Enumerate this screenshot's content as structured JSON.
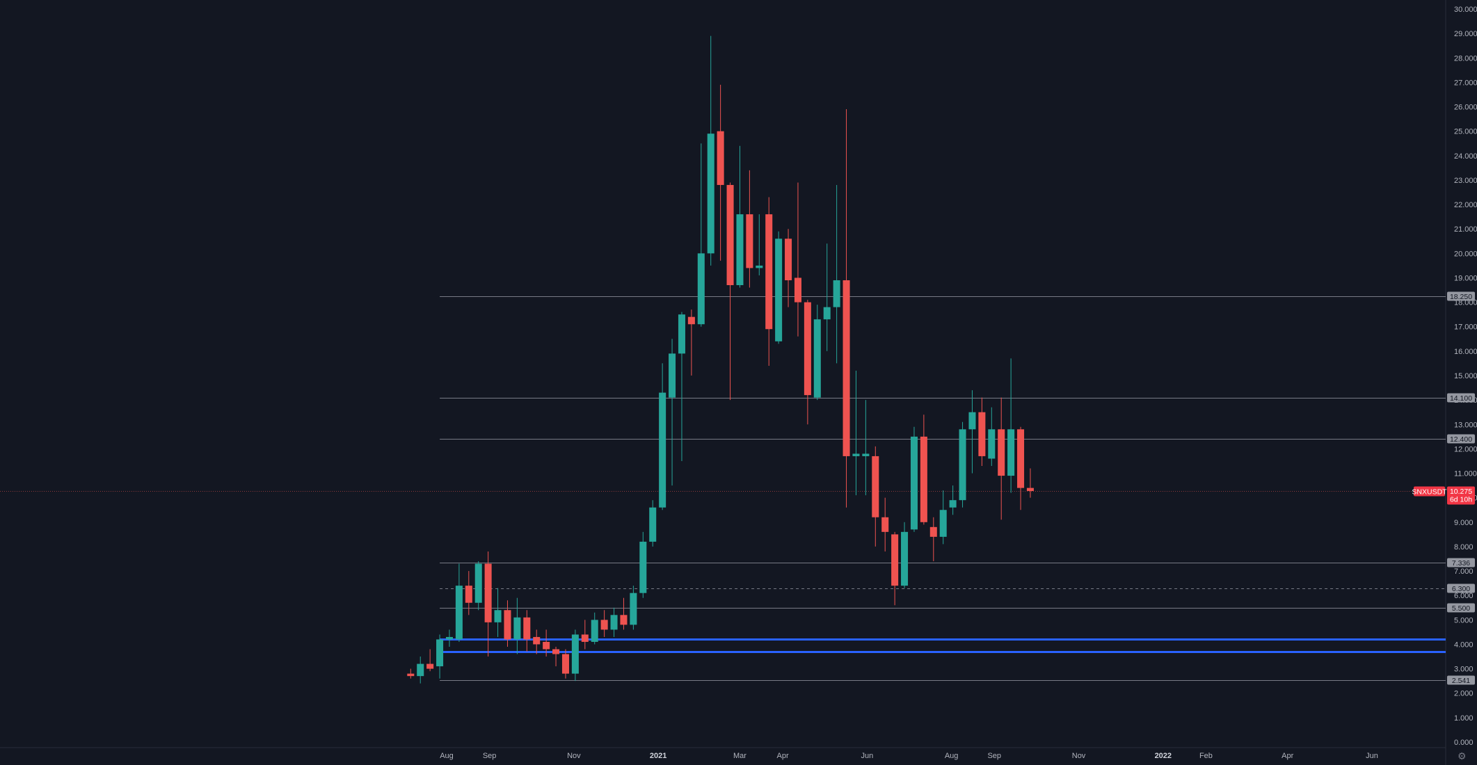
{
  "symbol": "SNXUSDT",
  "colors": {
    "background": "#131722",
    "up": "#26a69a",
    "down": "#ef5350",
    "grid_line": "#5d606b",
    "level_line": "#787b86",
    "blue_line": "#2962ff",
    "axis_text": "#b2b5be",
    "tag_bg": "#9598a1",
    "price_tag_bg": "#f23645"
  },
  "current_price": {
    "value": 10.275,
    "label": "10.275",
    "countdown": "6d 10h",
    "symbol_label": "SNXUSDT"
  },
  "levels": [
    {
      "value": 18.25,
      "label": "18.250",
      "style": "solid"
    },
    {
      "value": 14.1,
      "label": "14.100",
      "style": "solid"
    },
    {
      "value": 12.4,
      "label": "12.400",
      "style": "solid"
    },
    {
      "value": 7.336,
      "label": "7.336",
      "style": "solid"
    },
    {
      "value": 6.3,
      "label": "6.300",
      "style": "dashed"
    },
    {
      "value": 5.5,
      "label": "5.500",
      "style": "solid"
    },
    {
      "value": 2.541,
      "label": "2.541",
      "style": "solid"
    }
  ],
  "blue_levels": [
    4.2,
    3.7
  ],
  "settings_icon": "gear-icon",
  "chart_data": {
    "type": "candlestick",
    "interval": "1W",
    "y_range": [
      0,
      30
    ],
    "y_ticks": [
      "0.000",
      "1.000",
      "2.000",
      "3.000",
      "4.000",
      "5.000",
      "6.000",
      "7.000",
      "8.000",
      "9.000",
      "10.000",
      "11.000",
      "12.000",
      "13.000",
      "14.000",
      "15.000",
      "16.000",
      "17.000",
      "18.000",
      "19.000",
      "20.000",
      "21.000",
      "22.000",
      "23.000",
      "24.000",
      "25.000",
      "26.000",
      "27.000",
      "28.000",
      "29.000",
      "30.000"
    ],
    "x_ticks": [
      {
        "label": "Aug",
        "date": "2020-08-01",
        "year": false
      },
      {
        "label": "Sep",
        "date": "2020-09-01",
        "year": false
      },
      {
        "label": "Nov",
        "date": "2020-11-01",
        "year": false
      },
      {
        "label": "2021",
        "date": "2021-01-01",
        "year": true
      },
      {
        "label": "Mar",
        "date": "2021-03-01",
        "year": false
      },
      {
        "label": "Apr",
        "date": "2021-04-01",
        "year": false
      },
      {
        "label": "Jun",
        "date": "2021-06-01",
        "year": false
      },
      {
        "label": "Aug",
        "date": "2021-08-01",
        "year": false
      },
      {
        "label": "Sep",
        "date": "2021-09-01",
        "year": false
      },
      {
        "label": "Nov",
        "date": "2021-11-01",
        "year": false
      },
      {
        "label": "2022",
        "date": "2022-01-01",
        "year": true
      },
      {
        "label": "Feb",
        "date": "2022-02-01",
        "year": false
      },
      {
        "label": "Apr",
        "date": "2022-04-01",
        "year": false
      },
      {
        "label": "Jun",
        "date": "2022-06-01",
        "year": false
      }
    ],
    "first_candle_date": "2020-07-06",
    "candles": [
      {
        "o": 2.8,
        "h": 3.0,
        "l": 2.6,
        "c": 2.7
      },
      {
        "o": 2.7,
        "h": 3.5,
        "l": 2.4,
        "c": 3.2
      },
      {
        "o": 3.2,
        "h": 3.8,
        "l": 2.9,
        "c": 3.0
      },
      {
        "o": 3.1,
        "h": 4.4,
        "l": 2.6,
        "c": 4.2
      },
      {
        "o": 4.2,
        "h": 4.6,
        "l": 3.9,
        "c": 4.3
      },
      {
        "o": 4.2,
        "h": 7.3,
        "l": 4.1,
        "c": 6.4
      },
      {
        "o": 6.4,
        "h": 7.0,
        "l": 5.2,
        "c": 5.7
      },
      {
        "o": 5.7,
        "h": 7.4,
        "l": 5.4,
        "c": 7.3
      },
      {
        "o": 7.3,
        "h": 7.8,
        "l": 3.5,
        "c": 4.9
      },
      {
        "o": 4.9,
        "h": 6.3,
        "l": 4.3,
        "c": 5.4
      },
      {
        "o": 5.4,
        "h": 5.8,
        "l": 3.9,
        "c": 4.2
      },
      {
        "o": 4.2,
        "h": 5.9,
        "l": 3.6,
        "c": 5.1
      },
      {
        "o": 5.1,
        "h": 5.4,
        "l": 3.7,
        "c": 4.2
      },
      {
        "o": 4.3,
        "h": 4.6,
        "l": 3.6,
        "c": 4.0
      },
      {
        "o": 4.1,
        "h": 4.6,
        "l": 3.5,
        "c": 3.8
      },
      {
        "o": 3.8,
        "h": 3.9,
        "l": 3.1,
        "c": 3.6
      },
      {
        "o": 3.6,
        "h": 3.8,
        "l": 2.6,
        "c": 2.8
      },
      {
        "o": 2.8,
        "h": 4.6,
        "l": 2.5,
        "c": 4.4
      },
      {
        "o": 4.4,
        "h": 5.0,
        "l": 3.8,
        "c": 4.1
      },
      {
        "o": 4.1,
        "h": 5.3,
        "l": 4.0,
        "c": 5.0
      },
      {
        "o": 5.0,
        "h": 5.4,
        "l": 4.3,
        "c": 4.6
      },
      {
        "o": 4.6,
        "h": 5.5,
        "l": 4.3,
        "c": 5.2
      },
      {
        "o": 5.2,
        "h": 5.9,
        "l": 4.6,
        "c": 4.8
      },
      {
        "o": 4.8,
        "h": 6.4,
        "l": 4.6,
        "c": 6.1
      },
      {
        "o": 6.1,
        "h": 8.6,
        "l": 5.9,
        "c": 8.2
      },
      {
        "o": 8.2,
        "h": 9.9,
        "l": 8.0,
        "c": 9.6
      },
      {
        "o": 9.6,
        "h": 15.5,
        "l": 9.5,
        "c": 14.3
      },
      {
        "o": 14.1,
        "h": 16.5,
        "l": 10.5,
        "c": 15.9
      },
      {
        "o": 15.9,
        "h": 17.6,
        "l": 11.5,
        "c": 17.5
      },
      {
        "o": 17.4,
        "h": 17.7,
        "l": 15.0,
        "c": 17.1
      },
      {
        "o": 17.1,
        "h": 24.5,
        "l": 17.0,
        "c": 20.0
      },
      {
        "o": 20.0,
        "h": 28.9,
        "l": 19.5,
        "c": 24.9
      },
      {
        "o": 25.0,
        "h": 26.9,
        "l": 19.7,
        "c": 22.8
      },
      {
        "o": 22.8,
        "h": 22.9,
        "l": 14.0,
        "c": 18.7
      },
      {
        "o": 18.7,
        "h": 24.4,
        "l": 18.6,
        "c": 21.6
      },
      {
        "o": 21.6,
        "h": 23.4,
        "l": 18.6,
        "c": 19.4
      },
      {
        "o": 19.4,
        "h": 21.6,
        "l": 19.1,
        "c": 19.5
      },
      {
        "o": 21.6,
        "h": 22.3,
        "l": 15.4,
        "c": 16.9
      },
      {
        "o": 16.4,
        "h": 20.9,
        "l": 16.3,
        "c": 20.6
      },
      {
        "o": 20.6,
        "h": 21.0,
        "l": 17.8,
        "c": 18.9
      },
      {
        "o": 19.0,
        "h": 22.9,
        "l": 16.6,
        "c": 18.0
      },
      {
        "o": 18.0,
        "h": 18.1,
        "l": 13.0,
        "c": 14.2
      },
      {
        "o": 14.1,
        "h": 17.9,
        "l": 14.0,
        "c": 17.3
      },
      {
        "o": 17.3,
        "h": 20.4,
        "l": 16.0,
        "c": 17.8
      },
      {
        "o": 17.8,
        "h": 22.8,
        "l": 15.5,
        "c": 18.9
      },
      {
        "o": 18.9,
        "h": 25.9,
        "l": 9.6,
        "c": 11.7
      },
      {
        "o": 11.7,
        "h": 15.2,
        "l": 10.1,
        "c": 11.8
      },
      {
        "o": 11.7,
        "h": 14.0,
        "l": 10.1,
        "c": 11.8
      },
      {
        "o": 11.7,
        "h": 12.1,
        "l": 8.0,
        "c": 9.2
      },
      {
        "o": 9.2,
        "h": 10.0,
        "l": 7.8,
        "c": 8.6
      },
      {
        "o": 8.5,
        "h": 8.6,
        "l": 5.6,
        "c": 6.4
      },
      {
        "o": 6.4,
        "h": 9.0,
        "l": 6.3,
        "c": 8.6
      },
      {
        "o": 8.7,
        "h": 12.9,
        "l": 8.6,
        "c": 12.5
      },
      {
        "o": 12.5,
        "h": 13.4,
        "l": 8.9,
        "c": 9.0
      },
      {
        "o": 8.8,
        "h": 9.2,
        "l": 7.4,
        "c": 8.4
      },
      {
        "o": 8.4,
        "h": 10.3,
        "l": 8.1,
        "c": 9.5
      },
      {
        "o": 9.6,
        "h": 10.5,
        "l": 9.3,
        "c": 9.9
      },
      {
        "o": 9.9,
        "h": 13.1,
        "l": 9.6,
        "c": 12.8
      },
      {
        "o": 12.8,
        "h": 14.4,
        "l": 11.0,
        "c": 13.5
      },
      {
        "o": 13.5,
        "h": 14.1,
        "l": 11.3,
        "c": 11.7
      },
      {
        "o": 11.6,
        "h": 13.7,
        "l": 11.3,
        "c": 12.8
      },
      {
        "o": 12.8,
        "h": 14.1,
        "l": 9.1,
        "c": 10.9
      },
      {
        "o": 10.9,
        "h": 15.7,
        "l": 10.2,
        "c": 12.8
      },
      {
        "o": 12.8,
        "h": 12.9,
        "l": 9.5,
        "c": 10.4
      },
      {
        "o": 10.4,
        "h": 11.2,
        "l": 10.0,
        "c": 10.275
      }
    ]
  }
}
